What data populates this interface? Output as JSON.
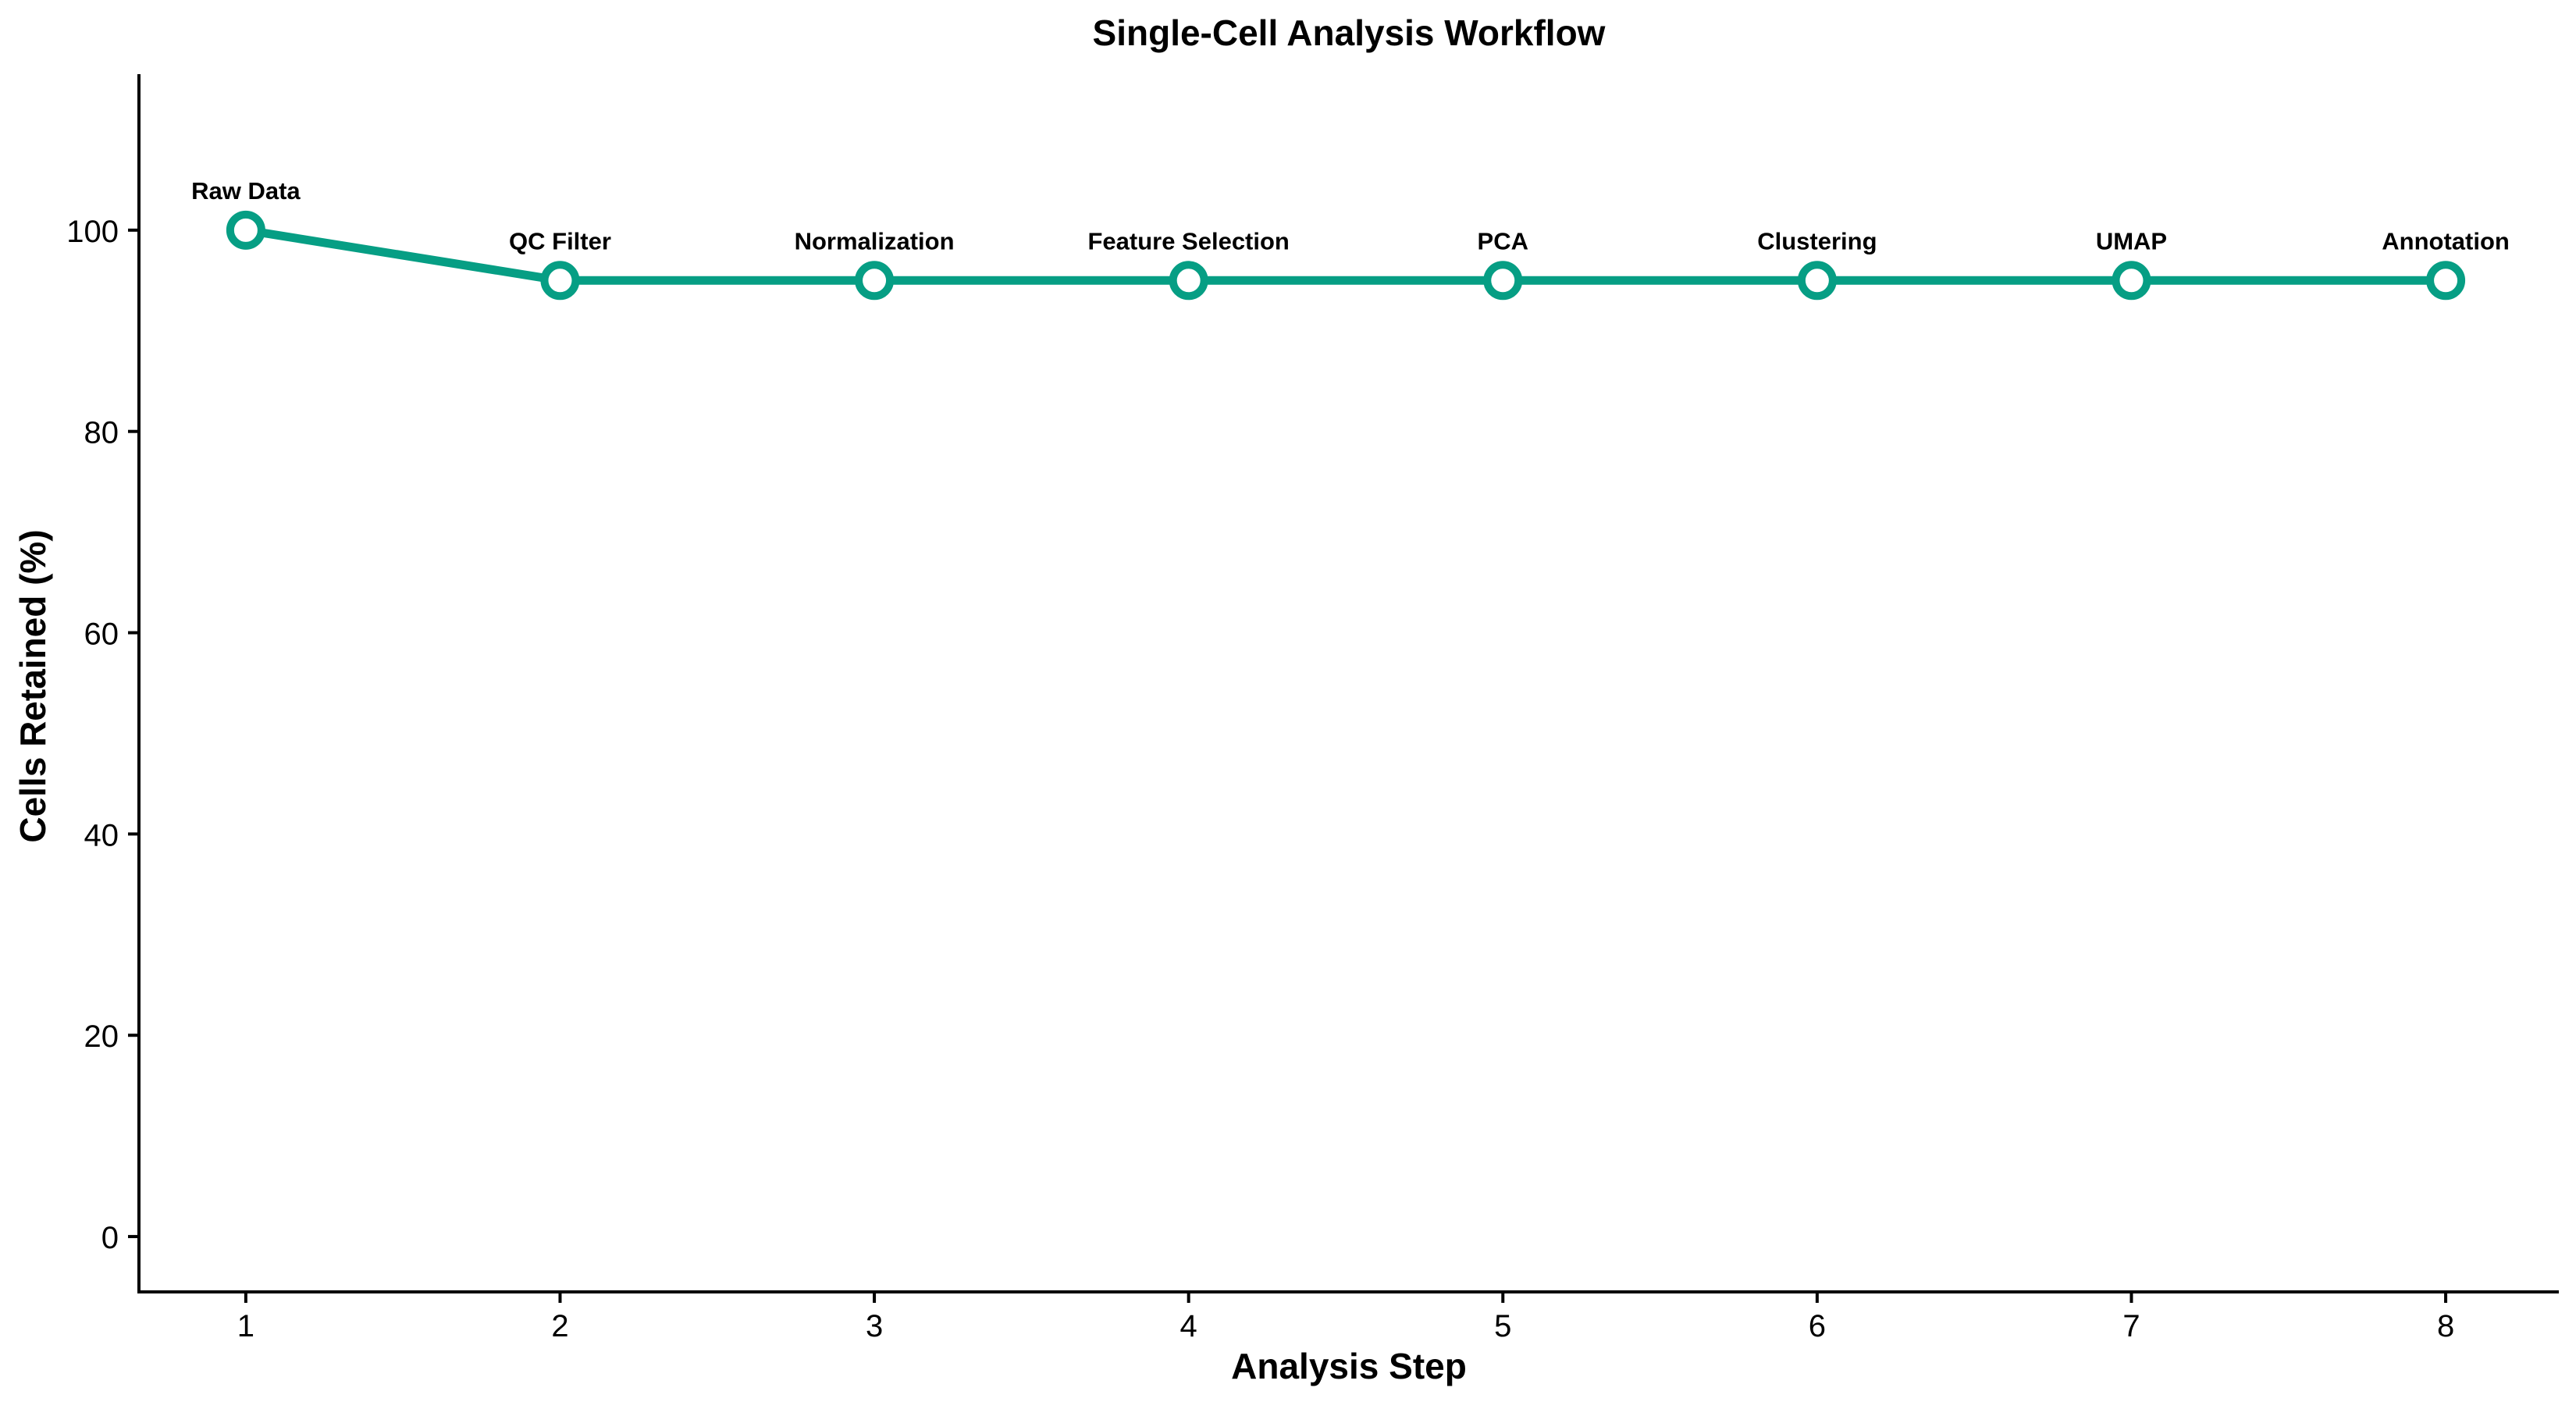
{
  "chart_data": {
    "type": "line",
    "title": "Single-Cell Analysis Workflow",
    "xlabel": "Analysis Step",
    "ylabel": "Cells Retained (%)",
    "x": [
      1,
      2,
      3,
      4,
      5,
      6,
      7,
      8
    ],
    "y": [
      100,
      95,
      95,
      95,
      95,
      95,
      95,
      95
    ],
    "point_labels": [
      "Raw Data",
      "QC Filter",
      "Normalization",
      "Feature Selection",
      "PCA",
      "Clustering",
      "UMAP",
      "Annotation"
    ],
    "xlim": [
      0.66,
      8.36
    ],
    "ylim": [
      -5.5,
      115.5
    ],
    "xticks": [
      1,
      2,
      3,
      4,
      5,
      6,
      7,
      8
    ],
    "yticks": [
      0,
      20,
      40,
      60,
      80,
      100
    ],
    "grid": false,
    "legend": "none",
    "colors": {
      "line": "#069E84",
      "marker_fill": "#ffffff",
      "text": "#000000"
    }
  }
}
